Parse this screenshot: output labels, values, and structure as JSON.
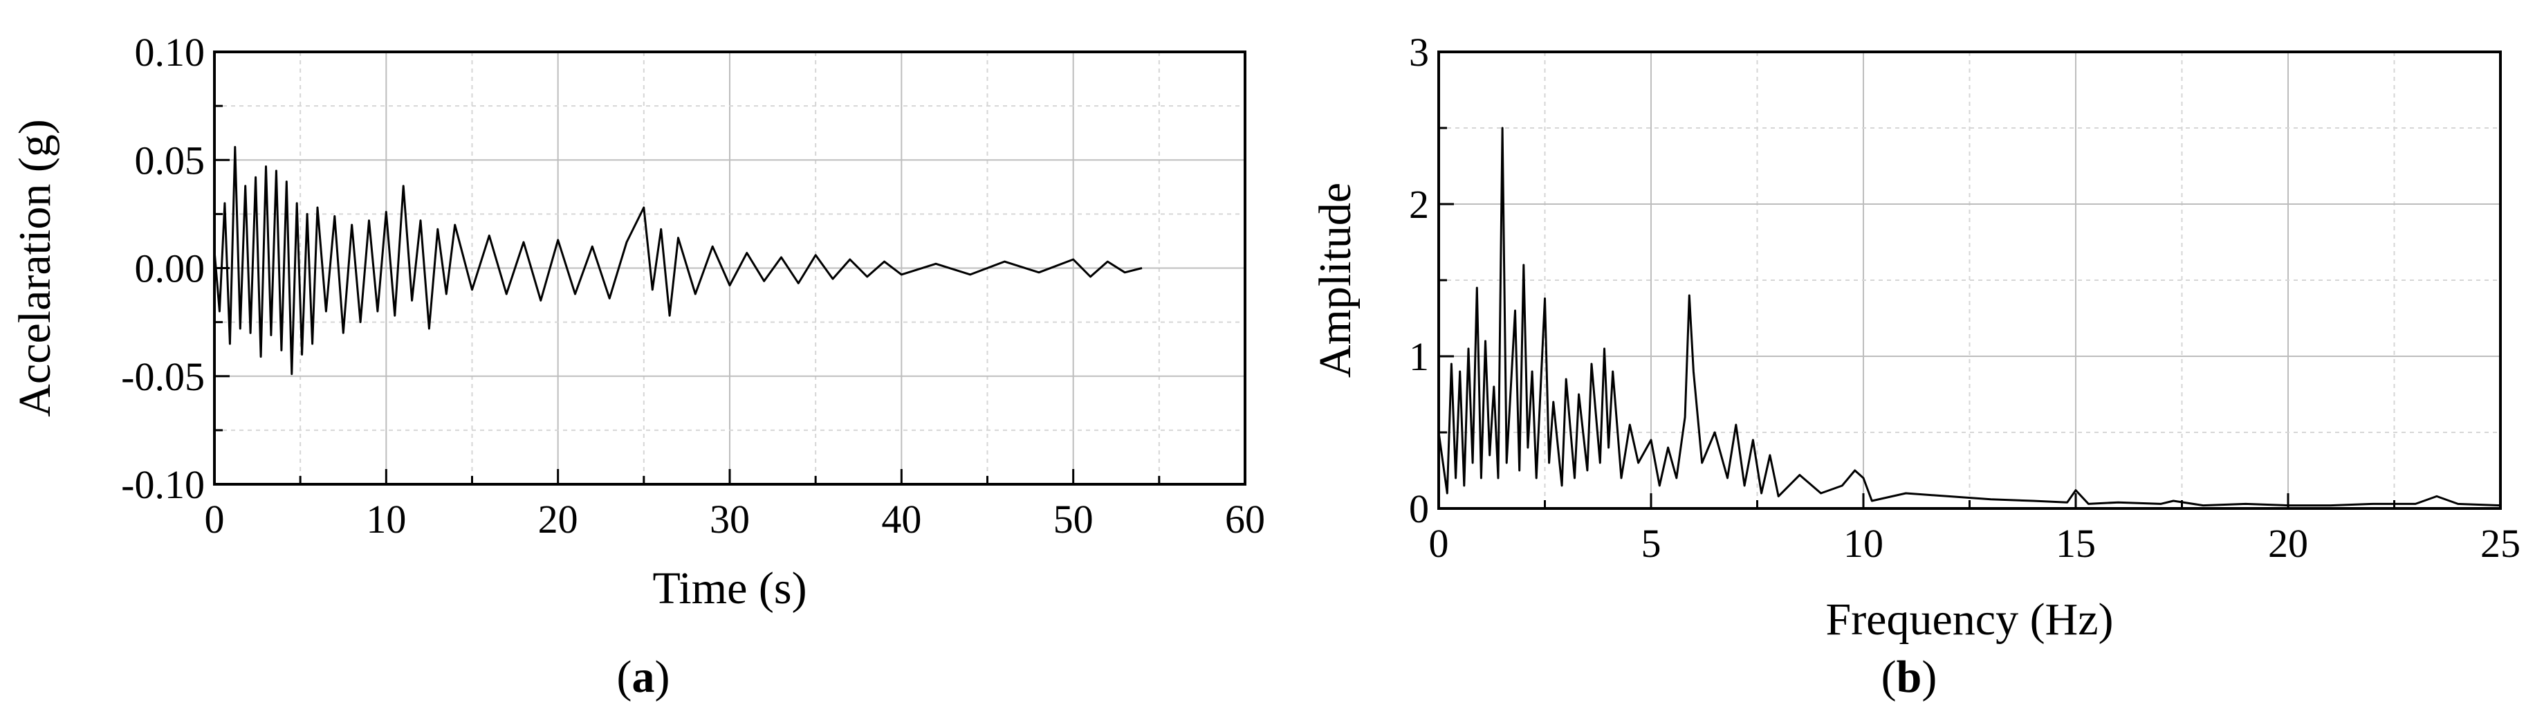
{
  "chart_data": [
    {
      "type": "line",
      "panel_label": "(a)",
      "panel_label_letter": "a",
      "xlabel": "Time (s)",
      "ylabel": "Accelaration (g)",
      "xlim": [
        0,
        60
      ],
      "ylim": [
        -0.1,
        0.1
      ],
      "x_ticks": [
        "0",
        "10",
        "20",
        "30",
        "40",
        "50",
        "60"
      ],
      "y_ticks": [
        "0.10",
        "0.05",
        "0.00",
        "-0.05",
        "-0.10"
      ],
      "grid": true,
      "series": [
        {
          "color": "#000000",
          "x": [
            0,
            0.3,
            0.6,
            0.9,
            1.2,
            1.5,
            1.8,
            2.1,
            2.4,
            2.7,
            3.0,
            3.3,
            3.6,
            3.9,
            4.2,
            4.5,
            4.8,
            5.1,
            5.4,
            5.7,
            6.0,
            6.5,
            7.0,
            7.5,
            8.0,
            8.5,
            9.0,
            9.5,
            10.0,
            10.5,
            11.0,
            11.5,
            12.0,
            12.5,
            13.0,
            13.5,
            14.0,
            15.0,
            16.0,
            17.0,
            18.0,
            19.0,
            20.0,
            21.0,
            22.0,
            23.0,
            24.0,
            25.0,
            25.5,
            26.0,
            26.5,
            27.0,
            28.0,
            29.0,
            30.0,
            31.0,
            32.0,
            33.0,
            34.0,
            35.0,
            36.0,
            37.0,
            38.0,
            39.0,
            40.0,
            42.0,
            44.0,
            46.0,
            48.0,
            50.0,
            51.0,
            52.0,
            53.0,
            54.0
          ],
          "y": [
            0.008,
            -0.02,
            0.03,
            -0.035,
            0.056,
            -0.028,
            0.038,
            -0.03,
            0.042,
            -0.041,
            0.047,
            -0.031,
            0.045,
            -0.038,
            0.04,
            -0.049,
            0.03,
            -0.04,
            0.025,
            -0.035,
            0.028,
            -0.02,
            0.024,
            -0.03,
            0.02,
            -0.025,
            0.022,
            -0.02,
            0.026,
            -0.022,
            0.038,
            -0.015,
            0.022,
            -0.028,
            0.018,
            -0.012,
            0.02,
            -0.01,
            0.015,
            -0.012,
            0.012,
            -0.015,
            0.013,
            -0.012,
            0.01,
            -0.014,
            0.012,
            0.028,
            -0.01,
            0.018,
            -0.022,
            0.014,
            -0.012,
            0.01,
            -0.008,
            0.007,
            -0.006,
            0.005,
            -0.007,
            0.006,
            -0.005,
            0.004,
            -0.004,
            0.003,
            -0.003,
            0.002,
            -0.003,
            0.003,
            -0.002,
            0.004,
            -0.004,
            0.003,
            -0.002,
            0.0
          ]
        }
      ]
    },
    {
      "type": "line",
      "panel_label": "(b)",
      "panel_label_letter": "b",
      "xlabel": "Frequency (Hz)",
      "ylabel": "Amplitude",
      "xlim": [
        0,
        25
      ],
      "ylim": [
        0,
        3
      ],
      "x_ticks": [
        "0",
        "5",
        "10",
        "15",
        "20",
        "25"
      ],
      "y_ticks": [
        "3",
        "2",
        "1",
        "0"
      ],
      "grid": true,
      "series": [
        {
          "color": "#000000",
          "x": [
            0,
            0.2,
            0.3,
            0.4,
            0.5,
            0.6,
            0.7,
            0.8,
            0.9,
            1.0,
            1.1,
            1.2,
            1.3,
            1.4,
            1.5,
            1.6,
            1.8,
            1.9,
            2.0,
            2.1,
            2.2,
            2.3,
            2.5,
            2.6,
            2.7,
            2.9,
            3.0,
            3.2,
            3.3,
            3.5,
            3.6,
            3.8,
            3.9,
            4.0,
            4.1,
            4.3,
            4.5,
            4.7,
            5.0,
            5.2,
            5.4,
            5.6,
            5.8,
            5.9,
            6.0,
            6.2,
            6.5,
            6.8,
            7.0,
            7.2,
            7.4,
            7.6,
            7.8,
            8.0,
            8.5,
            9.0,
            9.5,
            9.8,
            10.0,
            10.2,
            11.0,
            12.0,
            13.0,
            14.0,
            14.8,
            15.0,
            15.3,
            16.0,
            17.0,
            17.3,
            18.0,
            19.0,
            20.0,
            21.0,
            22.0,
            23.0,
            23.5,
            24.0,
            25.0
          ],
          "y": [
            0.5,
            0.1,
            0.95,
            0.2,
            0.9,
            0.15,
            1.05,
            0.3,
            1.45,
            0.2,
            1.1,
            0.35,
            0.8,
            0.2,
            2.5,
            0.3,
            1.3,
            0.25,
            1.6,
            0.4,
            0.9,
            0.2,
            1.38,
            0.3,
            0.7,
            0.15,
            0.85,
            0.2,
            0.75,
            0.25,
            0.95,
            0.3,
            1.05,
            0.4,
            0.9,
            0.2,
            0.55,
            0.3,
            0.45,
            0.15,
            0.4,
            0.2,
            0.6,
            1.4,
            0.9,
            0.3,
            0.5,
            0.2,
            0.55,
            0.15,
            0.45,
            0.1,
            0.35,
            0.08,
            0.22,
            0.1,
            0.15,
            0.25,
            0.2,
            0.05,
            0.1,
            0.08,
            0.06,
            0.05,
            0.04,
            0.12,
            0.03,
            0.04,
            0.03,
            0.05,
            0.02,
            0.03,
            0.02,
            0.02,
            0.03,
            0.03,
            0.08,
            0.03,
            0.02
          ]
        }
      ]
    }
  ]
}
